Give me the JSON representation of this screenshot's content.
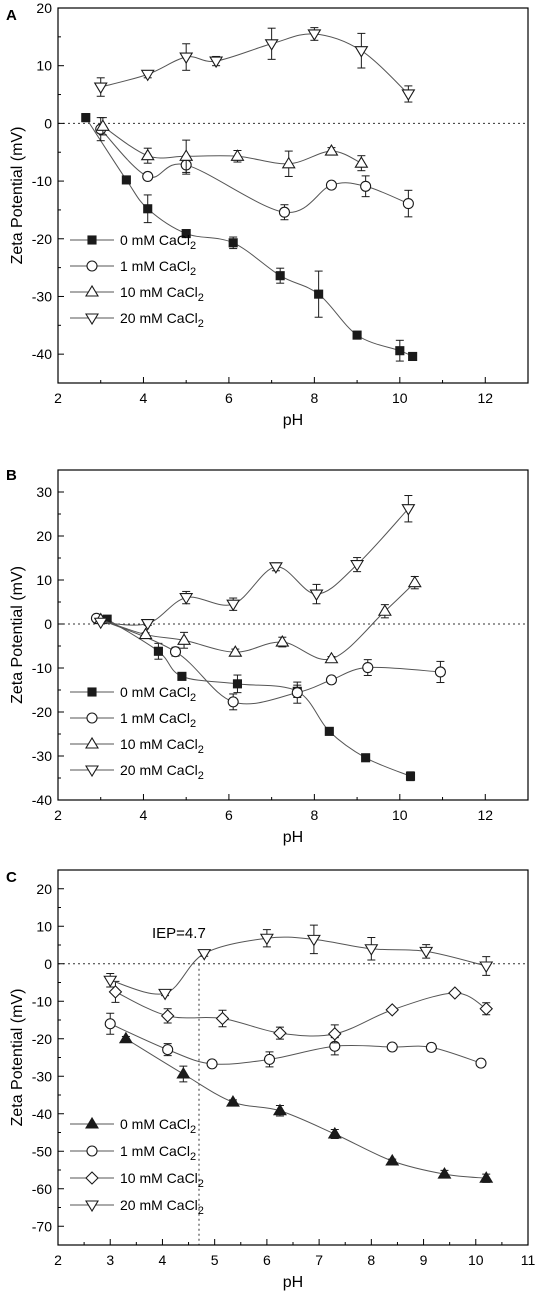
{
  "chart_data": [
    {
      "type": "scatter",
      "panel_label": "A",
      "xlabel": "pH",
      "ylabel": "Zeta Potential (mV)",
      "xlim": [
        2,
        13
      ],
      "ylim": [
        -45,
        20
      ],
      "xticks": [
        2,
        4,
        6,
        8,
        10,
        12
      ],
      "yticks": [
        -40,
        -30,
        -20,
        -10,
        0,
        10,
        20
      ],
      "zero_line": true,
      "legend_position": "lower-left",
      "series": [
        {
          "name": "0 mM CaCl",
          "subscript": "2",
          "marker": "filled-square",
          "x": [
            2.65,
            3.6,
            4.1,
            5.0,
            6.1,
            7.2,
            8.1,
            9.0,
            10.0,
            10.3
          ],
          "y": [
            1.0,
            -9.8,
            -14.8,
            -19.1,
            -20.7,
            -26.4,
            -29.6,
            -36.7,
            -39.4,
            -40.4
          ],
          "err": [
            0.7,
            0.4,
            2.4,
            0.4,
            1.0,
            1.3,
            4.0,
            0.5,
            1.8,
            0.4
          ]
        },
        {
          "name": "1 mM CaCl",
          "subscript": "2",
          "marker": "open-circle",
          "x": [
            3.0,
            4.1,
            5.0,
            7.3,
            8.4,
            9.2,
            10.2
          ],
          "y": [
            -1.0,
            -9.2,
            -7.2,
            -15.4,
            -10.7,
            -10.9,
            -13.9
          ],
          "err": [
            2.0,
            0.6,
            1.6,
            1.3,
            0.6,
            1.8,
            2.3
          ]
        },
        {
          "name": "10 mM CaCl",
          "subscript": "2",
          "marker": "open-triangle-up",
          "x": [
            3.05,
            4.1,
            5.0,
            6.2,
            7.4,
            8.4,
            9.1
          ],
          "y": [
            -0.5,
            -5.6,
            -5.7,
            -5.7,
            -7.0,
            -4.8,
            -6.9
          ],
          "err": [
            1.5,
            1.3,
            2.8,
            1.0,
            2.2,
            0.6,
            1.3
          ]
        },
        {
          "name": "20 mM CaCl",
          "subscript": "2",
          "marker": "open-triangle-down",
          "x": [
            3.0,
            4.1,
            5.0,
            5.7,
            7.0,
            8.0,
            9.1,
            10.2
          ],
          "y": [
            6.3,
            8.5,
            11.5,
            10.8,
            13.8,
            15.5,
            12.6,
            5.1
          ],
          "err": [
            1.6,
            0.6,
            2.3,
            0.8,
            2.7,
            1.1,
            3.0,
            1.4
          ]
        }
      ]
    },
    {
      "type": "scatter",
      "panel_label": "B",
      "xlabel": "pH",
      "ylabel": "Zeta Potential (mV)",
      "xlim": [
        2,
        13
      ],
      "ylim": [
        -40,
        35
      ],
      "xticks": [
        2,
        4,
        6,
        8,
        10,
        12
      ],
      "yticks": [
        -40,
        -30,
        -20,
        -10,
        0,
        10,
        20,
        30
      ],
      "zero_line": true,
      "legend_position": "lower-left",
      "series": [
        {
          "name": "0 mM CaCl",
          "subscript": "2",
          "marker": "filled-square",
          "x": [
            3.15,
            4.35,
            4.9,
            6.2,
            7.6,
            8.35,
            9.2,
            10.25
          ],
          "y": [
            1.1,
            -6.2,
            -11.9,
            -13.6,
            -15.3,
            -24.4,
            -30.4,
            -34.6
          ],
          "err": [
            0.3,
            1.8,
            0.4,
            2.0,
            1.4,
            0.5,
            0.5,
            1.0
          ]
        },
        {
          "name": "1 mM CaCl",
          "subscript": "2",
          "marker": "open-circle",
          "x": [
            2.9,
            4.75,
            6.1,
            7.6,
            8.4,
            9.25,
            10.95
          ],
          "y": [
            1.3,
            -6.3,
            -17.7,
            -15.6,
            -12.7,
            -9.9,
            -10.9
          ],
          "err": [
            0.3,
            1.0,
            1.8,
            2.4,
            0.8,
            1.8,
            2.4
          ]
        },
        {
          "name": "10 mM CaCl",
          "subscript": "2",
          "marker": "open-triangle-up",
          "x": [
            3.0,
            4.05,
            4.95,
            6.15,
            7.25,
            8.4,
            9.65,
            10.35
          ],
          "y": [
            1.0,
            -2.4,
            -3.7,
            -6.4,
            -4.1,
            -7.9,
            2.9,
            9.4
          ],
          "err": [
            0.3,
            0.4,
            1.8,
            0.7,
            1.1,
            0.5,
            1.5,
            1.4
          ]
        },
        {
          "name": "20 mM CaCl",
          "subscript": "2",
          "marker": "open-triangle-down",
          "x": [
            3.0,
            4.1,
            5.0,
            6.1,
            7.1,
            8.05,
            9.0,
            10.2
          ],
          "y": [
            0.4,
            0.1,
            6.0,
            4.5,
            13.0,
            6.8,
            13.5,
            26.2
          ],
          "err": [
            0.3,
            0.4,
            1.4,
            1.4,
            0.9,
            2.2,
            1.6,
            3.0
          ]
        }
      ]
    },
    {
      "type": "scatter",
      "panel_label": "C",
      "xlabel": "pH",
      "ylabel": "Zeta Potential (mV)",
      "xlim": [
        2,
        11
      ],
      "ylim": [
        -75,
        25
      ],
      "xticks": [
        2,
        3,
        4,
        5,
        6,
        7,
        8,
        9,
        10,
        11
      ],
      "yticks": [
        -70,
        -60,
        -50,
        -40,
        -30,
        -20,
        -10,
        0,
        10,
        20
      ],
      "zero_line": true,
      "iep_x": 4.7,
      "annotation": "IEP=4.7",
      "legend_position": "lower-left",
      "series": [
        {
          "name": "0 mM CaCl",
          "subscript": "2",
          "marker": "filled-triangle-up",
          "x": [
            3.3,
            4.4,
            5.35,
            6.25,
            7.3,
            8.4,
            9.4,
            10.2
          ],
          "y": [
            -20.0,
            -29.4,
            -36.9,
            -39.2,
            -45.4,
            -52.6,
            -56.1,
            -57.2
          ],
          "err": [
            0.6,
            2.1,
            0.6,
            1.4,
            1.2,
            0.5,
            1.0,
            1.1
          ]
        },
        {
          "name": "1 mM CaCl",
          "subscript": "2",
          "marker": "open-circle",
          "x": [
            3.0,
            4.1,
            4.95,
            6.05,
            7.3,
            8.4,
            9.15,
            10.1
          ],
          "y": [
            -16.0,
            -22.9,
            -26.7,
            -25.5,
            -22.0,
            -22.2,
            -22.3,
            -26.5
          ],
          "err": [
            2.8,
            1.6,
            0.7,
            2.0,
            2.3,
            0.6,
            1.0,
            0.6
          ]
        },
        {
          "name": "10 mM CaCl",
          "subscript": "2",
          "marker": "open-diamond",
          "x": [
            3.1,
            4.1,
            5.15,
            6.25,
            7.3,
            8.4,
            9.6,
            10.2
          ],
          "y": [
            -7.5,
            -13.9,
            -14.6,
            -18.5,
            -18.7,
            -12.3,
            -7.8,
            -12.0
          ],
          "err": [
            2.8,
            1.9,
            2.2,
            1.6,
            2.4,
            0.6,
            0.5,
            1.6
          ]
        },
        {
          "name": "20 mM CaCl",
          "subscript": "2",
          "marker": "open-triangle-down",
          "x": [
            3.0,
            4.05,
            4.8,
            6.0,
            6.9,
            8.0,
            9.05,
            10.2
          ],
          "y": [
            -4.4,
            -7.9,
            2.7,
            6.8,
            6.5,
            4.0,
            3.3,
            -0.6
          ],
          "err": [
            1.8,
            0.6,
            0.7,
            2.3,
            3.8,
            3.0,
            1.8,
            2.5
          ]
        }
      ]
    }
  ]
}
